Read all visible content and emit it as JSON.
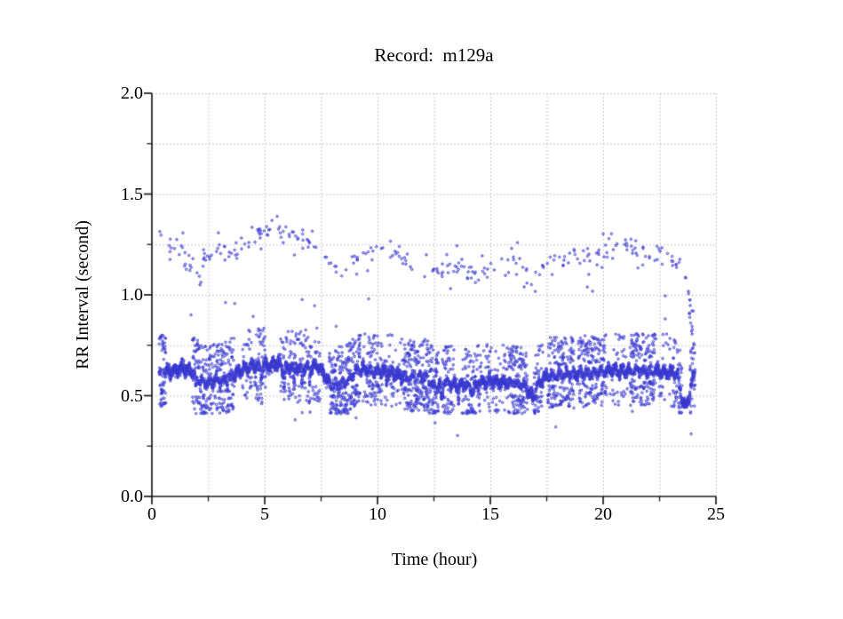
{
  "page": {
    "background": "#ffffff"
  },
  "chart_data": {
    "type": "scatter",
    "title": "Record:  m129a",
    "xlabel": "Time (hour)",
    "ylabel": "RR Interval (second)",
    "xlim": [
      0,
      25
    ],
    "ylim": [
      0.0,
      2.0
    ],
    "x_major_ticks": [
      0,
      5,
      10,
      15,
      20,
      25
    ],
    "x_tick_labels": [
      "0",
      "5",
      "10",
      "15",
      "20",
      "25"
    ],
    "x_minor_step": 2.5,
    "y_major_ticks": [
      0.0,
      0.5,
      1.0,
      1.5,
      2.0
    ],
    "y_tick_labels": [
      "0.0",
      "0.5",
      "1.0",
      "1.5",
      "2.0"
    ],
    "y_minor_step": 0.25,
    "grid": {
      "show": true,
      "style": "dotted",
      "color": "#b5b5b5",
      "at_minor_ticks": true
    },
    "axis_color": "#1a1a1a",
    "point_color": "#3737ce",
    "point_fill": "rgba(110,110,232,0.30)",
    "point_radius": 1.25,
    "seed": 1129,
    "time_range": [
      0.32,
      24.08
    ],
    "sample_step_hours": 0.004,
    "main_band": {
      "keypoints": [
        [
          0.3,
          0.6
        ],
        [
          0.45,
          0.62
        ],
        [
          0.7,
          0.615
        ],
        [
          1.0,
          0.625
        ],
        [
          1.4,
          0.64
        ],
        [
          1.8,
          0.615
        ],
        [
          2.1,
          0.575
        ],
        [
          2.4,
          0.56
        ],
        [
          2.7,
          0.575
        ],
        [
          3.0,
          0.57
        ],
        [
          3.3,
          0.585
        ],
        [
          3.6,
          0.6
        ],
        [
          4.0,
          0.63
        ],
        [
          4.4,
          0.645
        ],
        [
          4.8,
          0.645
        ],
        [
          5.2,
          0.655
        ],
        [
          5.6,
          0.66
        ],
        [
          5.9,
          0.63
        ],
        [
          6.2,
          0.645
        ],
        [
          6.5,
          0.635
        ],
        [
          6.9,
          0.64
        ],
        [
          7.3,
          0.65
        ],
        [
          7.6,
          0.61
        ],
        [
          7.9,
          0.555
        ],
        [
          8.3,
          0.555
        ],
        [
          8.7,
          0.57
        ],
        [
          9.0,
          0.615
        ],
        [
          9.4,
          0.63
        ],
        [
          9.8,
          0.62
        ],
        [
          10.2,
          0.62
        ],
        [
          10.6,
          0.615
        ],
        [
          11.0,
          0.6
        ],
        [
          11.4,
          0.585
        ],
        [
          11.8,
          0.595
        ],
        [
          12.2,
          0.59
        ],
        [
          12.6,
          0.525
        ],
        [
          12.9,
          0.575
        ],
        [
          13.2,
          0.56
        ],
        [
          13.5,
          0.55
        ],
        [
          13.9,
          0.56
        ],
        [
          14.2,
          0.52
        ],
        [
          14.5,
          0.565
        ],
        [
          15.0,
          0.57
        ],
        [
          15.5,
          0.565
        ],
        [
          16.0,
          0.565
        ],
        [
          16.5,
          0.55
        ],
        [
          16.9,
          0.49
        ],
        [
          17.1,
          0.555
        ],
        [
          17.5,
          0.6
        ],
        [
          18.0,
          0.6
        ],
        [
          18.5,
          0.605
        ],
        [
          19.0,
          0.61
        ],
        [
          19.5,
          0.61
        ],
        [
          20.0,
          0.62
        ],
        [
          20.5,
          0.625
        ],
        [
          21.0,
          0.62
        ],
        [
          21.5,
          0.625
        ],
        [
          22.0,
          0.62
        ],
        [
          22.5,
          0.62
        ],
        [
          23.0,
          0.615
        ],
        [
          23.3,
          0.61
        ],
        [
          23.45,
          0.5
        ],
        [
          23.6,
          0.445
        ],
        [
          23.72,
          0.46
        ],
        [
          23.85,
          0.52
        ],
        [
          24.0,
          0.6
        ],
        [
          24.08,
          0.62
        ]
      ],
      "noise_sd": 0.012,
      "wiggle_amp": 0.015,
      "wiggle_periods": [
        0.31,
        0.11
      ]
    },
    "dips": [
      [
        1.95,
        0.05,
        0.03
      ],
      [
        4.85,
        0.06,
        0.03
      ],
      [
        5.85,
        0.1,
        0.035
      ],
      [
        6.3,
        0.09,
        0.03
      ],
      [
        6.65,
        0.08,
        0.03
      ],
      [
        7.0,
        0.07,
        0.03
      ],
      [
        10.4,
        0.05,
        0.025
      ],
      [
        12.85,
        0.09,
        0.04
      ],
      [
        13.6,
        0.06,
        0.03
      ],
      [
        21.3,
        0.05,
        0.025
      ]
    ],
    "episodes": [
      [
        0.3,
        0.62,
        0.8
      ],
      [
        1.8,
        3.65,
        0.5
      ],
      [
        4.0,
        4.45,
        0.18
      ],
      [
        4.55,
        5.05,
        0.32
      ],
      [
        5.7,
        7.45,
        0.28
      ],
      [
        7.85,
        9.25,
        0.55
      ],
      [
        9.35,
        10.2,
        0.42
      ],
      [
        10.3,
        11.1,
        0.16
      ],
      [
        11.15,
        12.7,
        0.55
      ],
      [
        12.85,
        13.4,
        0.42
      ],
      [
        13.75,
        14.6,
        0.38
      ],
      [
        14.7,
        15.75,
        0.2
      ],
      [
        15.8,
        16.65,
        0.55
      ],
      [
        16.9,
        17.35,
        0.4
      ],
      [
        17.55,
        18.7,
        0.5
      ],
      [
        18.9,
        20.15,
        0.5
      ],
      [
        20.3,
        21.1,
        0.14
      ],
      [
        21.2,
        22.35,
        0.5
      ],
      [
        22.45,
        23.05,
        0.12
      ],
      [
        23.1,
        23.5,
        0.45
      ],
      [
        23.85,
        24.08,
        0.4
      ]
    ],
    "episode_offsets": {
      "up_min": 0.05,
      "up_max": 0.19,
      "down_min": 0.05,
      "down_max": 0.17,
      "floor": 0.41
    },
    "upper_band": {
      "count": 300,
      "noise_sd": 0.03,
      "spread_fraction": 0.06,
      "keypoints": [
        [
          0.35,
          1.33
        ],
        [
          0.6,
          1.28
        ],
        [
          0.9,
          1.22
        ],
        [
          1.2,
          1.25
        ],
        [
          1.5,
          1.17
        ],
        [
          1.9,
          1.11
        ],
        [
          2.2,
          1.16
        ],
        [
          2.5,
          1.19
        ],
        [
          2.8,
          1.26
        ],
        [
          3.1,
          1.24
        ],
        [
          3.4,
          1.21
        ],
        [
          3.7,
          1.23
        ],
        [
          4.0,
          1.22
        ],
        [
          4.3,
          1.26
        ],
        [
          4.6,
          1.29
        ],
        [
          4.9,
          1.31
        ],
        [
          5.2,
          1.32
        ],
        [
          5.5,
          1.35
        ],
        [
          5.8,
          1.32
        ],
        [
          6.1,
          1.3
        ],
        [
          6.4,
          1.28
        ],
        [
          6.7,
          1.26
        ],
        [
          7.0,
          1.25
        ],
        [
          7.3,
          1.22
        ],
        [
          7.6,
          1.18
        ],
        [
          8.0,
          1.15
        ],
        [
          8.4,
          1.12
        ],
        [
          8.8,
          1.14
        ],
        [
          9.2,
          1.2
        ],
        [
          9.6,
          1.22
        ],
        [
          10.0,
          1.24
        ],
        [
          10.4,
          1.23
        ],
        [
          10.8,
          1.2
        ],
        [
          11.2,
          1.16
        ],
        [
          11.6,
          1.14
        ],
        [
          12.0,
          1.07
        ],
        [
          12.4,
          1.1
        ],
        [
          12.8,
          1.13
        ],
        [
          13.2,
          1.16
        ],
        [
          13.6,
          1.13
        ],
        [
          14.0,
          1.12
        ],
        [
          14.4,
          1.1
        ],
        [
          14.8,
          1.12
        ],
        [
          15.2,
          1.14
        ],
        [
          15.6,
          1.13
        ],
        [
          16.0,
          1.16
        ],
        [
          16.4,
          1.12
        ],
        [
          16.8,
          1.05
        ],
        [
          17.2,
          1.12
        ],
        [
          17.6,
          1.16
        ],
        [
          18.0,
          1.18
        ],
        [
          18.4,
          1.17
        ],
        [
          18.8,
          1.19
        ],
        [
          19.2,
          1.2
        ],
        [
          19.6,
          1.17
        ],
        [
          20.0,
          1.22
        ],
        [
          20.4,
          1.24
        ],
        [
          20.8,
          1.26
        ],
        [
          21.2,
          1.24
        ],
        [
          21.6,
          1.22
        ],
        [
          22.0,
          1.2
        ],
        [
          22.4,
          1.21
        ],
        [
          22.8,
          1.18
        ],
        [
          23.2,
          1.16
        ],
        [
          23.5,
          1.14
        ],
        [
          23.75,
          1.02
        ],
        [
          23.95,
          0.96
        ],
        [
          24.05,
          0.92
        ]
      ]
    },
    "end_descent": {
      "count": 12,
      "t_range": [
        23.78,
        24.04
      ],
      "v_start": 1.0,
      "v_end": 0.72,
      "noise_sd": 0.04
    },
    "mid_outliers": {
      "count": 10,
      "t_range": [
        1.0,
        23.5
      ],
      "v_range": [
        0.84,
        1.02
      ]
    },
    "low_outliers": [
      [
        6.35,
        0.38
      ],
      [
        9.05,
        0.39
      ],
      [
        12.55,
        0.365
      ],
      [
        13.55,
        0.302
      ],
      [
        17.9,
        0.345
      ],
      [
        23.9,
        0.31
      ]
    ]
  }
}
